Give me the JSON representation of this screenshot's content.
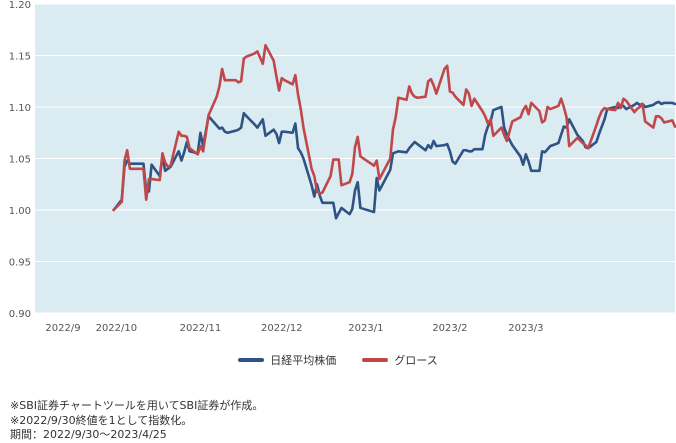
{
  "chart_data": {
    "type": "line",
    "x_tick_labels": [
      "2022/9",
      "2022/10",
      "2022/11",
      "2022/12",
      "2023/1",
      "2023/2",
      "2023/3"
    ],
    "y_tick_labels": [
      "0.90",
      "0.95",
      "1.00",
      "1.05",
      "1.10",
      "1.15",
      "1.20"
    ],
    "ylim": [
      0.9,
      1.2
    ],
    "grid": true,
    "legend_position": "bottom",
    "background_color": "#daebf2",
    "series": [
      {
        "name": "日経平均株価",
        "color": "#2f5384",
        "x": [
          "2022-09-30",
          "2022-10-03",
          "2022-10-04",
          "2022-10-05",
          "2022-10-06",
          "2022-10-07",
          "2022-10-11",
          "2022-10-12",
          "2022-10-13",
          "2022-10-14",
          "2022-10-17",
          "2022-10-18",
          "2022-10-19",
          "2022-10-20",
          "2022-10-21",
          "2022-10-24",
          "2022-10-25",
          "2022-10-26",
          "2022-10-27",
          "2022-10-28",
          "2022-10-31",
          "2022-11-01",
          "2022-11-02",
          "2022-11-04",
          "2022-11-07",
          "2022-11-08",
          "2022-11-09",
          "2022-11-10",
          "2022-11-11",
          "2022-11-14",
          "2022-11-15",
          "2022-11-16",
          "2022-11-17",
          "2022-11-18",
          "2022-11-21",
          "2022-11-22",
          "2022-11-24",
          "2022-11-25",
          "2022-11-28",
          "2022-11-29",
          "2022-11-30",
          "2022-12-01",
          "2022-12-02",
          "2022-12-05",
          "2022-12-06",
          "2022-12-07",
          "2022-12-08",
          "2022-12-09",
          "2022-12-12",
          "2022-12-13",
          "2022-12-14",
          "2022-12-15",
          "2022-12-16",
          "2022-12-19",
          "2022-12-20",
          "2022-12-21",
          "2022-12-22",
          "2022-12-23",
          "2022-12-26",
          "2022-12-27",
          "2022-12-28",
          "2022-12-29",
          "2022-12-30",
          "2023-01-04",
          "2023-01-05",
          "2023-01-06",
          "2023-01-10",
          "2023-01-11",
          "2023-01-12",
          "2023-01-13",
          "2023-01-16",
          "2023-01-17",
          "2023-01-18",
          "2023-01-19",
          "2023-01-20",
          "2023-01-23",
          "2023-01-24",
          "2023-01-25",
          "2023-01-26",
          "2023-01-27",
          "2023-01-30",
          "2023-01-31",
          "2023-02-01",
          "2023-02-02",
          "2023-02-03",
          "2023-02-06",
          "2023-02-07",
          "2023-02-08",
          "2023-02-09",
          "2023-02-10",
          "2023-02-13",
          "2023-02-14",
          "2023-02-15",
          "2023-02-16",
          "2023-02-17",
          "2023-02-20",
          "2023-02-21",
          "2023-02-22",
          "2023-02-24",
          "2023-02-27",
          "2023-02-28",
          "2023-03-01",
          "2023-03-02",
          "2023-03-03",
          "2023-03-06",
          "2023-03-07",
          "2023-03-08",
          "2023-03-09",
          "2023-03-10",
          "2023-03-13",
          "2023-03-14",
          "2023-03-15",
          "2023-03-16",
          "2023-03-17",
          "2023-03-20",
          "2023-03-22",
          "2023-03-23",
          "2023-03-24",
          "2023-03-27",
          "2023-03-28",
          "2023-03-29",
          "2023-03-30",
          "2023-03-31",
          "2023-04-03",
          "2023-04-04",
          "2023-04-05",
          "2023-04-06",
          "2023-04-07",
          "2023-04-10",
          "2023-04-11",
          "2023-04-12",
          "2023-04-13",
          "2023-04-14",
          "2023-04-17",
          "2023-04-18",
          "2023-04-19",
          "2023-04-20",
          "2023-04-21",
          "2023-04-24",
          "2023-04-25"
        ],
        "values": [
          1.0,
          1.01,
          1.042,
          1.048,
          1.045,
          1.045,
          1.045,
          1.018,
          1.018,
          1.044,
          1.033,
          1.052,
          1.038,
          1.04,
          1.042,
          1.057,
          1.048,
          1.056,
          1.066,
          1.057,
          1.055,
          1.075,
          1.062,
          1.091,
          1.082,
          1.079,
          1.08,
          1.076,
          1.075,
          1.077,
          1.078,
          1.08,
          1.094,
          1.091,
          1.083,
          1.08,
          1.088,
          1.072,
          1.078,
          1.074,
          1.065,
          1.076,
          1.076,
          1.075,
          1.084,
          1.06,
          1.056,
          1.05,
          1.024,
          1.013,
          1.025,
          1.014,
          1.007,
          1.007,
          1.007,
          0.992,
          0.997,
          1.002,
          0.996,
          1.001,
          1.019,
          1.027,
          1.002,
          0.998,
          1.031,
          1.019,
          1.039,
          1.055,
          1.056,
          1.057,
          1.056,
          1.06,
          1.063,
          1.066,
          1.064,
          1.058,
          1.063,
          1.06,
          1.067,
          1.062,
          1.063,
          1.064,
          1.057,
          1.047,
          1.045,
          1.058,
          1.058,
          1.057,
          1.057,
          1.059,
          1.059,
          1.073,
          1.081,
          1.086,
          1.097,
          1.1,
          1.08,
          1.073,
          1.063,
          1.052,
          1.044,
          1.054,
          1.047,
          1.038,
          1.038,
          1.057,
          1.056,
          1.059,
          1.062,
          1.065,
          1.073,
          1.081,
          1.08,
          1.088,
          1.073,
          1.067,
          1.061,
          1.06,
          1.066,
          1.074,
          1.081,
          1.088,
          1.098,
          1.1,
          1.099,
          1.102,
          1.101,
          1.098,
          1.102,
          1.104,
          1.102,
          1.103,
          1.1,
          1.102,
          1.104,
          1.105,
          1.103,
          1.104,
          1.104,
          1.103
        ]
      },
      {
        "name": "グロース",
        "color": "#c0474a",
        "x": [
          "2022-09-30",
          "2022-10-03",
          "2022-10-04",
          "2022-10-05",
          "2022-10-06",
          "2022-10-07",
          "2022-10-11",
          "2022-10-12",
          "2022-10-13",
          "2022-10-14",
          "2022-10-17",
          "2022-10-18",
          "2022-10-19",
          "2022-10-20",
          "2022-10-21",
          "2022-10-24",
          "2022-10-25",
          "2022-10-26",
          "2022-10-27",
          "2022-10-28",
          "2022-10-31",
          "2022-11-01",
          "2022-11-02",
          "2022-11-04",
          "2022-11-07",
          "2022-11-08",
          "2022-11-09",
          "2022-11-10",
          "2022-11-11",
          "2022-11-14",
          "2022-11-15",
          "2022-11-16",
          "2022-11-17",
          "2022-11-18",
          "2022-11-21",
          "2022-11-22",
          "2022-11-24",
          "2022-11-25",
          "2022-11-28",
          "2022-11-29",
          "2022-11-30",
          "2022-12-01",
          "2022-12-02",
          "2022-12-05",
          "2022-12-06",
          "2022-12-07",
          "2022-12-08",
          "2022-12-09",
          "2022-12-12",
          "2022-12-13",
          "2022-12-14",
          "2022-12-15",
          "2022-12-16",
          "2022-12-19",
          "2022-12-20",
          "2022-12-21",
          "2022-12-22",
          "2022-12-23",
          "2022-12-26",
          "2022-12-27",
          "2022-12-28",
          "2022-12-29",
          "2022-12-30",
          "2023-01-04",
          "2023-01-05",
          "2023-01-06",
          "2023-01-10",
          "2023-01-11",
          "2023-01-12",
          "2023-01-13",
          "2023-01-16",
          "2023-01-17",
          "2023-01-18",
          "2023-01-19",
          "2023-01-20",
          "2023-01-23",
          "2023-01-24",
          "2023-01-25",
          "2023-01-26",
          "2023-01-27",
          "2023-01-30",
          "2023-01-31",
          "2023-02-01",
          "2023-02-02",
          "2023-02-03",
          "2023-02-06",
          "2023-02-07",
          "2023-02-08",
          "2023-02-09",
          "2023-02-10",
          "2023-02-13",
          "2023-02-14",
          "2023-02-15",
          "2023-02-16",
          "2023-02-17",
          "2023-02-20",
          "2023-02-21",
          "2023-02-22",
          "2023-02-24",
          "2023-02-27",
          "2023-02-28",
          "2023-03-01",
          "2023-03-02",
          "2023-03-03",
          "2023-03-06",
          "2023-03-07",
          "2023-03-08",
          "2023-03-09",
          "2023-03-10",
          "2023-03-13",
          "2023-03-14",
          "2023-03-15",
          "2023-03-16",
          "2023-03-17",
          "2023-03-20",
          "2023-03-22",
          "2023-03-23",
          "2023-03-24",
          "2023-03-27",
          "2023-03-28",
          "2023-03-29",
          "2023-03-30",
          "2023-03-31",
          "2023-04-03",
          "2023-04-04",
          "2023-04-05",
          "2023-04-06",
          "2023-04-07",
          "2023-04-10",
          "2023-04-11",
          "2023-04-12",
          "2023-04-13",
          "2023-04-14",
          "2023-04-17",
          "2023-04-18",
          "2023-04-19",
          "2023-04-20",
          "2023-04-21",
          "2023-04-24",
          "2023-04-25"
        ],
        "values": [
          1.0,
          1.008,
          1.048,
          1.058,
          1.04,
          1.04,
          1.04,
          1.01,
          1.03,
          1.03,
          1.029,
          1.055,
          1.046,
          1.042,
          1.043,
          1.076,
          1.072,
          1.072,
          1.071,
          1.06,
          1.054,
          1.062,
          1.057,
          1.092,
          1.11,
          1.12,
          1.137,
          1.126,
          1.126,
          1.126,
          1.124,
          1.125,
          1.147,
          1.149,
          1.152,
          1.154,
          1.142,
          1.16,
          1.145,
          1.13,
          1.116,
          1.128,
          1.126,
          1.122,
          1.131,
          1.112,
          1.098,
          1.08,
          1.04,
          1.033,
          1.018,
          1.016,
          1.017,
          1.033,
          1.049,
          1.049,
          1.049,
          1.024,
          1.027,
          1.035,
          1.061,
          1.071,
          1.052,
          1.043,
          1.048,
          1.03,
          1.05,
          1.078,
          1.09,
          1.109,
          1.107,
          1.12,
          1.113,
          1.11,
          1.109,
          1.11,
          1.125,
          1.127,
          1.121,
          1.113,
          1.137,
          1.14,
          1.115,
          1.114,
          1.11,
          1.102,
          1.117,
          1.113,
          1.101,
          1.108,
          1.096,
          1.091,
          1.084,
          1.088,
          1.072,
          1.08,
          1.073,
          1.067,
          1.086,
          1.09,
          1.097,
          1.101,
          1.093,
          1.104,
          1.096,
          1.085,
          1.087,
          1.1,
          1.098,
          1.101,
          1.108,
          1.1,
          1.09,
          1.062,
          1.07,
          1.065,
          1.063,
          1.06,
          1.082,
          1.09,
          1.096,
          1.099,
          1.098,
          1.097,
          1.104,
          1.099,
          1.108,
          1.106,
          1.095,
          1.098,
          1.1,
          1.103,
          1.086,
          1.08,
          1.091,
          1.091,
          1.089,
          1.085,
          1.087,
          1.081
        ]
      }
    ]
  },
  "legend": {
    "nikkei_label": "日経平均株価",
    "growth_label": "グロース"
  },
  "notes": {
    "line1": "※SBI証券チャートツールを用いてSBI証券が作成。",
    "line2": "※2022/9/30終値を1として指数化。",
    "line3": "期間：2022/9/30～2023/4/25"
  }
}
